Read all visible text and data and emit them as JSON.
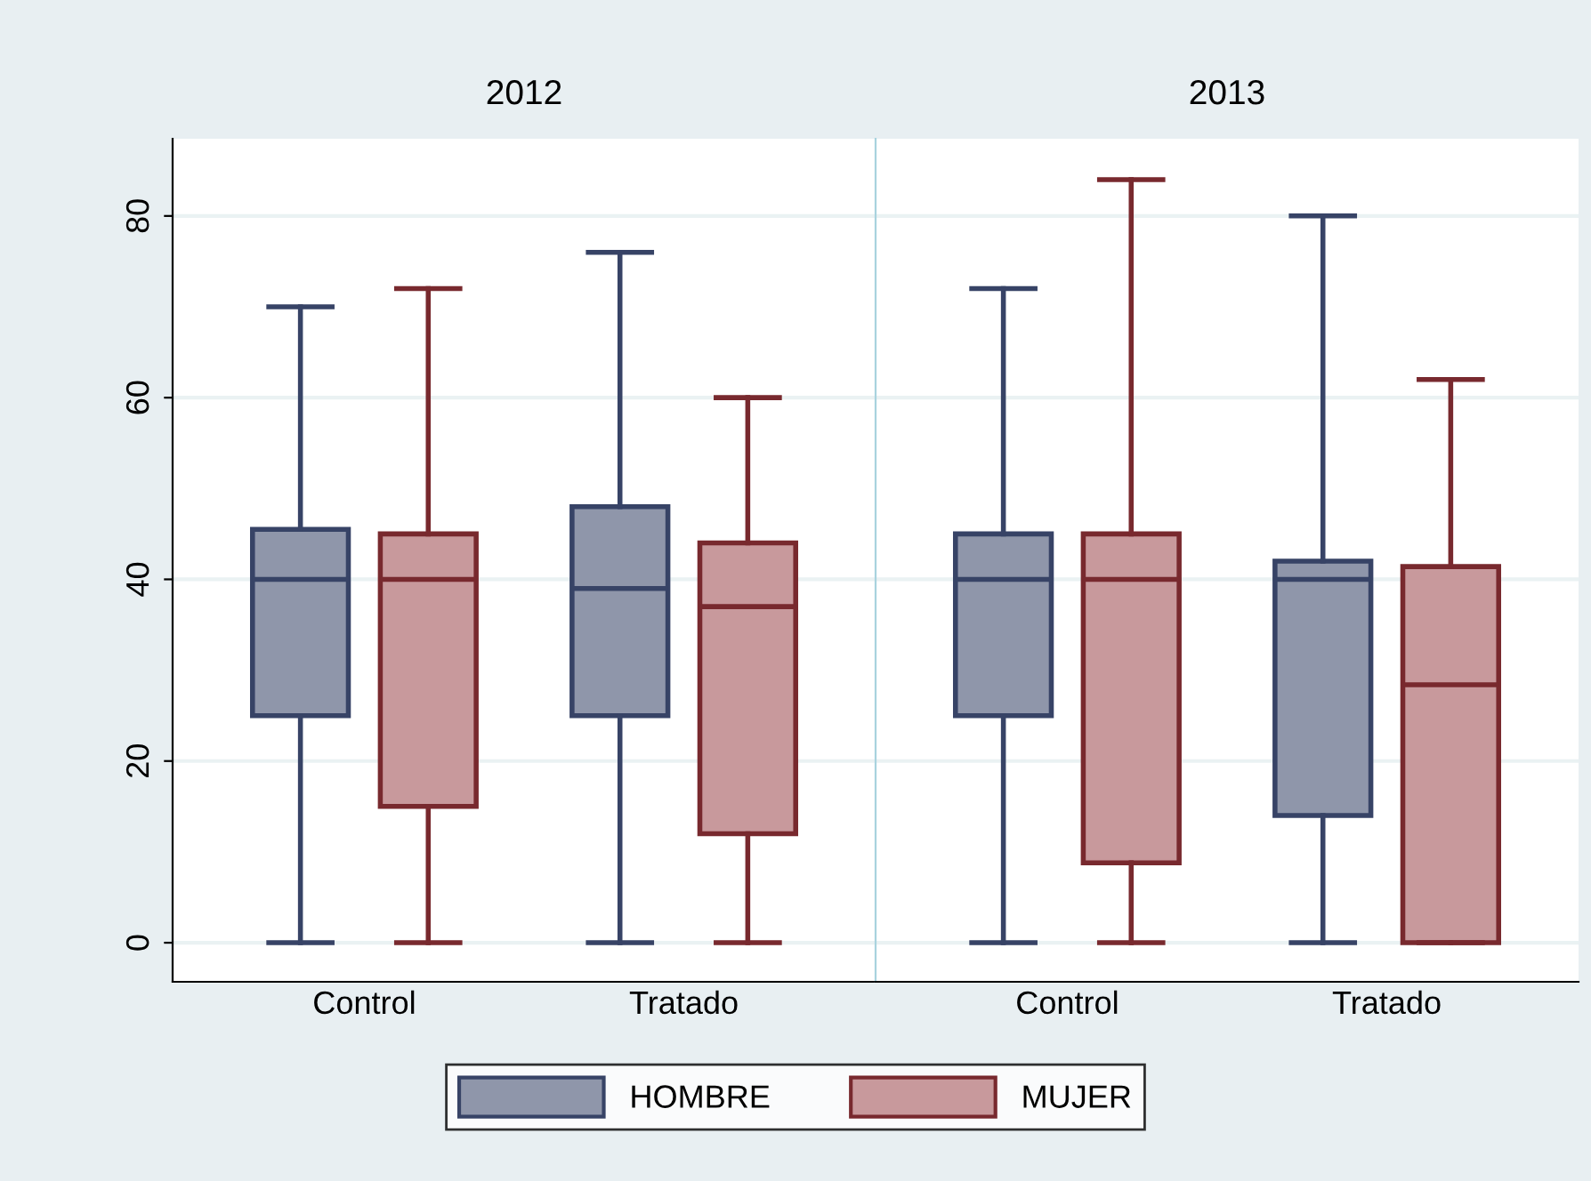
{
  "chart_data": [
    {
      "type": "box",
      "title": "2012",
      "categories": [
        "Control",
        "Tratado"
      ],
      "ylim": [
        -4.3,
        88.5
      ],
      "yticks": [
        0,
        20,
        40,
        60,
        80
      ],
      "grid": "y",
      "legend": "bottom",
      "series": [
        {
          "name": "HOMBRE",
          "color": "#8f96aa",
          "boxes": [
            {
              "low": 0,
              "q1": 25,
              "median": 40,
              "q3": 45.5,
              "high": 70
            },
            {
              "low": 0,
              "q1": 25,
              "median": 39,
              "q3": 48,
              "high": 76
            }
          ]
        },
        {
          "name": "MUJER",
          "color": "#c8999c",
          "boxes": [
            {
              "low": 0,
              "q1": 15,
              "median": 40,
              "q3": 45,
              "high": 72
            },
            {
              "low": 0,
              "q1": 12,
              "median": 37,
              "q3": 44,
              "high": 60
            }
          ]
        }
      ]
    },
    {
      "type": "box",
      "title": "2013",
      "categories": [
        "Control",
        "Tratado"
      ],
      "ylim": [
        -4.3,
        88.5
      ],
      "yticks": [
        0,
        20,
        40,
        60,
        80
      ],
      "grid": "y",
      "tick_labels": "x",
      "series": [
        {
          "color": "#8f96aa",
          "boxes": [
            {
              "low": 0,
              "q1": 25,
              "median": 40,
              "q3": 45,
              "high": 72
            },
            {
              "low": 0,
              "q1": 14,
              "median": 40,
              "q3": 42,
              "high": 80
            }
          ]
        },
        {
          "color": "#c8999c",
          "boxes": [
            {
              "low": 0,
              "q1": 8.8,
              "median": 40,
              "q3": 45,
              "high": 84
            },
            {
              "low": 0,
              "q1": 0,
              "median": 28.4,
              "q3": 41.4,
              "high": 62
            }
          ]
        }
      ]
    }
  ]
}
